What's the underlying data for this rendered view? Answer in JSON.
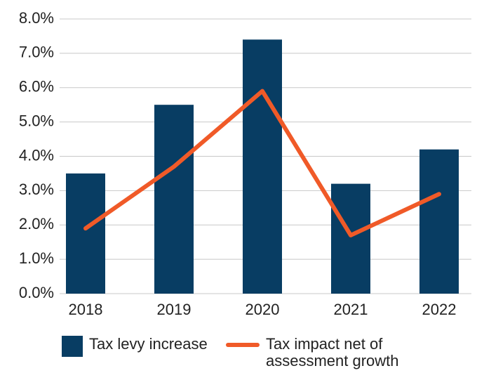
{
  "chart_data": {
    "type": "bar-line",
    "categories": [
      "2018",
      "2019",
      "2020",
      "2021",
      "2022"
    ],
    "series": [
      {
        "name": "Tax levy increase",
        "type": "bar",
        "color": "#083d63",
        "values": [
          3.5,
          5.5,
          7.4,
          3.2,
          4.2
        ]
      },
      {
        "name": "Tax impact net of assessment growth",
        "type": "line",
        "color": "#f05a28",
        "values": [
          1.9,
          3.7,
          5.9,
          1.7,
          2.9
        ]
      }
    ],
    "ylim": [
      0,
      8
    ],
    "yticks": [
      {
        "value": 0,
        "label": "0.0%"
      },
      {
        "value": 1,
        "label": "1.0%"
      },
      {
        "value": 2,
        "label": "2.0%"
      },
      {
        "value": 3,
        "label": "3.0%"
      },
      {
        "value": 4,
        "label": "4.0%"
      },
      {
        "value": 5,
        "label": "5.0%"
      },
      {
        "value": 6,
        "label": "6.0%"
      },
      {
        "value": 7,
        "label": "7.0%"
      },
      {
        "value": 8,
        "label": "8.0%"
      }
    ],
    "grid": true
  }
}
